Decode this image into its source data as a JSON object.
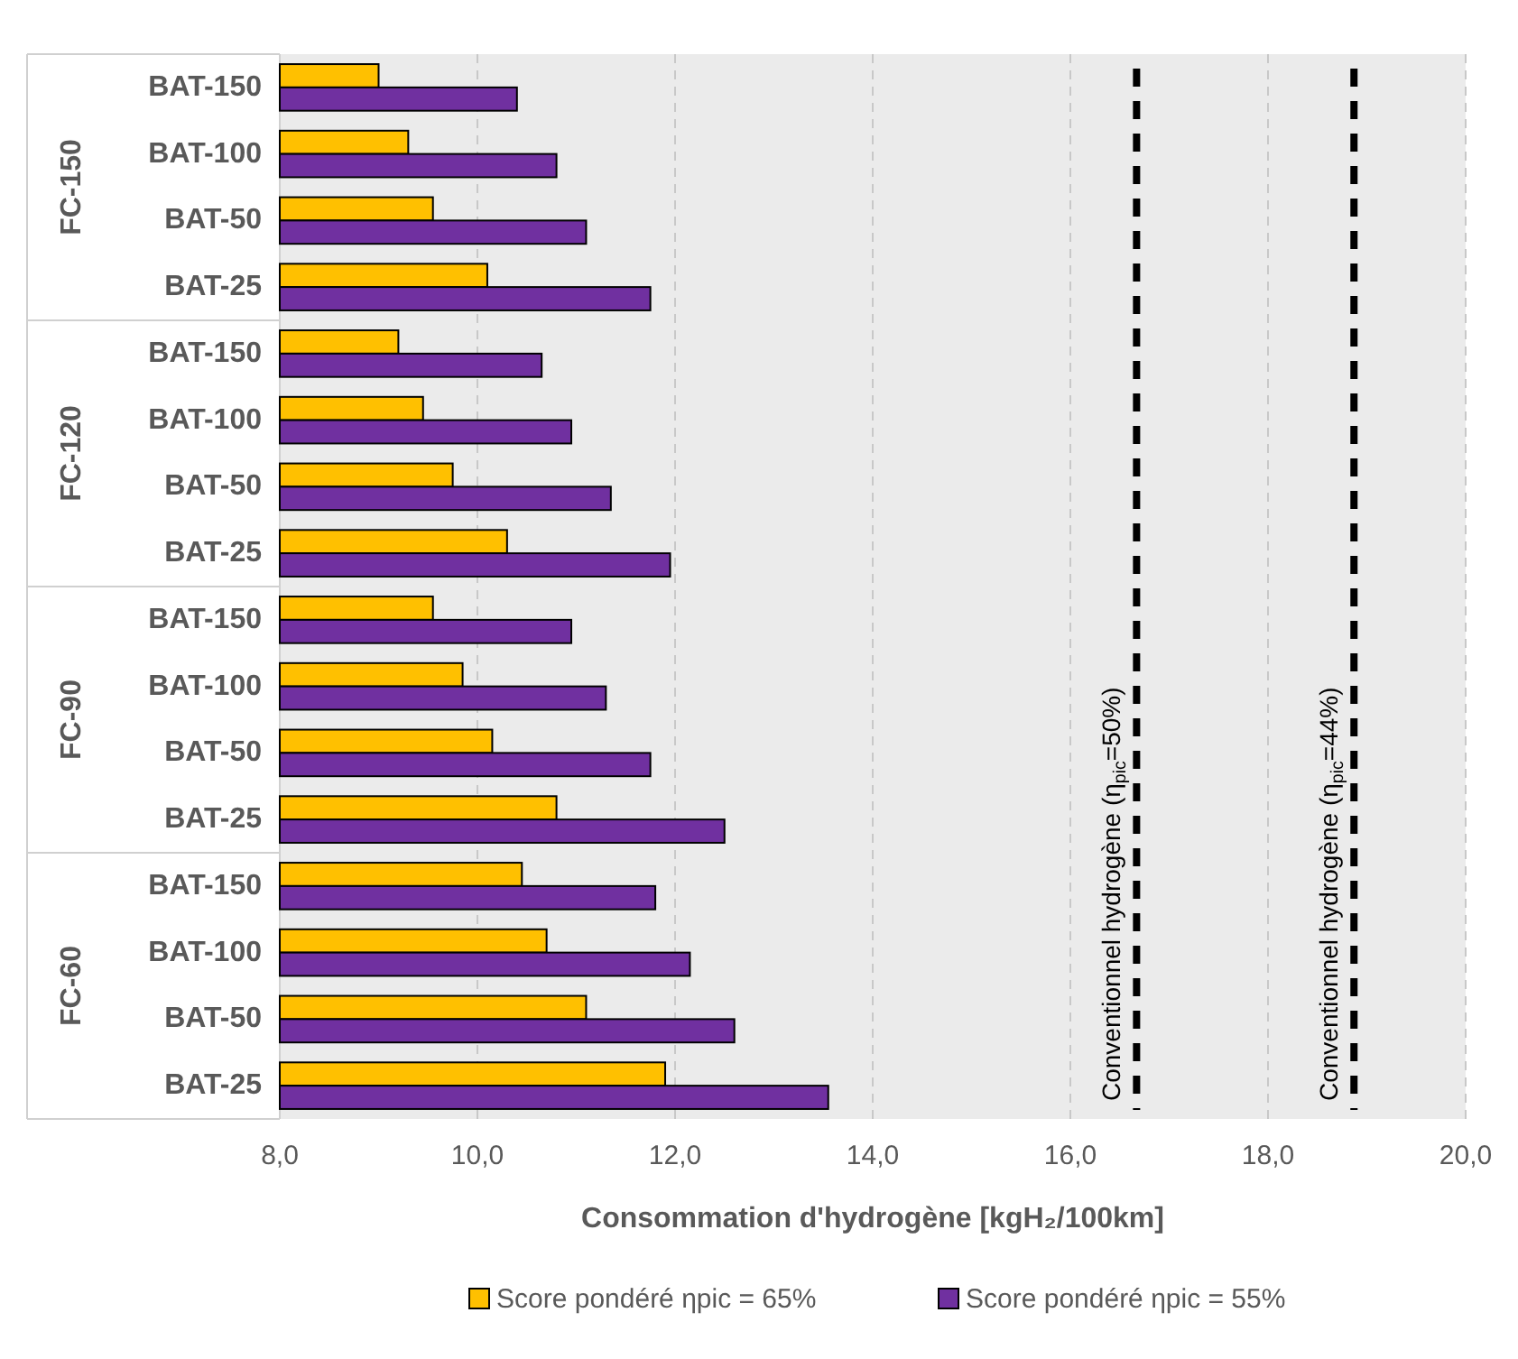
{
  "chart_data": {
    "type": "bar",
    "orientation": "horizontal",
    "xlabel": "Consommation d'hydrogène [kgH₂/100km]",
    "categories": [
      "BAT-150",
      "BAT-100",
      "BAT-50",
      "BAT-25",
      "BAT-150",
      "BAT-100",
      "BAT-50",
      "BAT-25",
      "BAT-150",
      "BAT-100",
      "BAT-50",
      "BAT-25",
      "BAT-150",
      "BAT-100",
      "BAT-50",
      "BAT-25"
    ],
    "annotations": [
      "FC-150",
      "FC-120",
      "FC-90",
      "FC-60",
      "Conventionnel hydrogène (η$_{pic}$=50%)",
      "Conventionnel hydrogène (η$_{pic}$=44%)"
    ],
    "series": [
      {
        "name": "Score pondéré ηpic = 65%",
        "color": "#ffc000",
        "values": [
          9.0,
          9.3,
          9.55,
          10.1,
          9.2,
          9.45,
          9.75,
          10.3,
          9.55,
          9.85,
          10.15,
          10.8,
          10.45,
          10.7,
          11.1,
          11.9
        ]
      },
      {
        "name": "Score pondéré ηpic = 55%",
        "color": "#7030a0",
        "values": [
          10.4,
          10.8,
          11.1,
          11.75,
          10.65,
          10.95,
          11.35,
          11.95,
          10.95,
          11.3,
          11.75,
          12.5,
          11.8,
          12.15,
          12.6,
          13.55
        ]
      }
    ],
    "xlim": [
      8,
      20
    ],
    "xticks": [
      {
        "value": 8,
        "label": "8,0"
      },
      {
        "value": 10,
        "label": "10,0"
      },
      {
        "value": 12,
        "label": "12,0"
      },
      {
        "value": 14,
        "label": "14,0"
      },
      {
        "value": 16,
        "label": "16,0"
      },
      {
        "value": 18,
        "label": "18,0"
      },
      {
        "value": 20,
        "label": "20,0"
      }
    ],
    "grid": "x",
    "legend": "bottom",
    "ref_lines": [
      {
        "axis": "x",
        "value": 16.67,
        "color": "#000000",
        "line_style": "dashed"
      },
      {
        "axis": "x",
        "value": 18.87,
        "color": "#000000",
        "line_style": "dashed"
      }
    ]
  }
}
